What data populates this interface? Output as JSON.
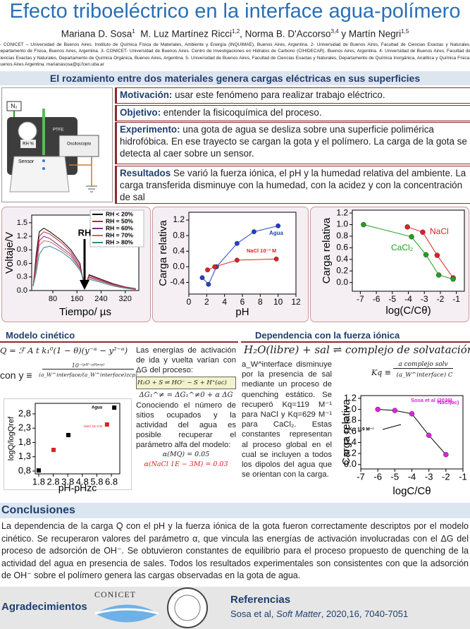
{
  "header": {
    "title": "Efecto triboeléctrico en la interface agua-polímero",
    "authors": [
      {
        "name": "Mariana D. Sosa",
        "sup": "1"
      },
      {
        "name": "M. Luz Martínez Ricci",
        "sup": "1,2"
      },
      {
        "name": ", Norma B. D'Accorso",
        "sup": "3,4"
      },
      {
        "name": " y Martín Negri",
        "sup": "1,5"
      }
    ],
    "affiliations": "1- CONICET – Universidad de Buenos Aires. Instituto de Química Física de Materiales, Ambiente y Energía (INQUIMAE), Buenos Aires, Argentina. 2- Universidad de Buenos Aires, Facultad de Ciencias Exactas y Naturales, Departamento de Física, Buenos Aires, Argentina. 3- CONICET- Universidad de Buenos Aires. Centro de Investigaciones en Hidratos de Carbono (CIHIDECAR). Buenos Aires, Argentina. 4- Universidad de Buenos Aires, Facultad de Ciencias Exactas y Naturales, Departamento de Química Orgánica, Buenos Aires, Argentina. 5- Universidad de Buenos Aires, Facultad de Ciencias Exactas y Naturales, Departamento de Química Inorgánica, Analítica y Química Física, Buenos Aires Argentina. marianasosa@qi.fcen.uba.ar"
  },
  "banner": "El rozamiento entre dos materiales genera cargas eléctricas en sus superficies",
  "diagram": {
    "labels": [
      "N₂",
      "RH %",
      "PTFE",
      "Osciloscopio",
      "Sensor"
    ]
  },
  "intro": [
    {
      "label": "Motivación:",
      "text": " usar este fenómeno para realizar trabajo eléctrico."
    },
    {
      "label": "Objetivo:",
      "text": " entender la fisicoquímica del proceso."
    },
    {
      "label": "Experimento:",
      "text": " una gota de agua se desliza sobre una superficie polimérica hidrofóbica. En ese trayecto se cargan la gota y el polímero. La carga de la gota se detecta al caer sobre un sensor."
    },
    {
      "label": "Resultados",
      "text": " Se varió la fuerza iónica, el pH y la humedad relativa del ambiente. La carga transferida disminuye con la humedad, con la acidez y con la concentración de sal"
    }
  ],
  "chart_data": [
    {
      "type": "line",
      "xlabel": "Tiempo/ µs",
      "ylabel": "Voltaje/V",
      "x": [
        15,
        25,
        35,
        50,
        70,
        90,
        110,
        140,
        170,
        185,
        200,
        240,
        280,
        320,
        355
      ],
      "series": [
        {
          "name": "RH < 20%",
          "color": "#000000",
          "values": [
            0.1,
            0.8,
            1.3,
            1.38,
            1.3,
            1.2,
            1.1,
            0.9,
            0.6,
            0.05,
            0.35,
            0.25,
            0.15,
            0.08,
            0.04
          ]
        },
        {
          "name": "RH = 50%",
          "color": "#d42020",
          "values": [
            0.1,
            0.7,
            1.2,
            1.3,
            1.25,
            1.15,
            1.05,
            0.85,
            0.55,
            0.1,
            0.33,
            0.24,
            0.14,
            0.08,
            0.04
          ]
        },
        {
          "name": "RH = 60%",
          "color": "#7b2d8b",
          "values": [
            0.1,
            0.6,
            1.1,
            1.2,
            1.15,
            1.05,
            0.95,
            0.8,
            0.5,
            0.12,
            0.3,
            0.22,
            0.13,
            0.07,
            0.03
          ]
        },
        {
          "name": "RH = 70%",
          "color": "#c86464",
          "values": [
            0.1,
            0.5,
            1.0,
            1.1,
            1.08,
            1.0,
            0.9,
            0.75,
            0.48,
            0.15,
            0.28,
            0.2,
            0.12,
            0.06,
            0.03
          ]
        },
        {
          "name": "RH > 80%",
          "color": "#2e8b8b",
          "values": [
            0.1,
            0.4,
            0.8,
            0.95,
            0.98,
            0.92,
            0.85,
            0.7,
            0.45,
            0.2,
            0.25,
            0.18,
            0.1,
            0.05,
            0.02
          ]
        }
      ],
      "xlim": [
        10,
        365
      ],
      "ylim": [
        0,
        1.67
      ],
      "xticks": [
        80,
        160,
        240,
        320
      ],
      "yticks": [
        {
          "value": 0,
          "label": "0.0"
        },
        0.3,
        0.6,
        0.9,
        1.2,
        1.5
      ],
      "annotations": [
        {
          "text": "RH",
          "color": "#000000"
        }
      ],
      "legend": "upper right"
    },
    {
      "type": "scatter",
      "connected": true,
      "marker": "circle",
      "xlabel": "pH",
      "ylabel": "Carga relativa",
      "series": [
        {
          "name": "Agua",
          "color": "#1f3fd0",
          "x": [
            1.5,
            2.2,
            3.1,
            5.4,
            7.3,
            10
          ],
          "values": [
            -0.28,
            -0.45,
            0.0,
            0.6,
            0.9,
            1.05
          ]
        },
        {
          "name": "NaCl 10⁻³ M",
          "color": "#e02020",
          "x": [
            2.1,
            2.9,
            5.4,
            9.8
          ],
          "values": [
            -0.08,
            0.0,
            0.17,
            0.2
          ]
        }
      ],
      "xlim": [
        0,
        12
      ],
      "ylim": [
        -0.7,
        1.4
      ],
      "xticks": [
        0,
        2,
        4,
        6,
        8,
        10,
        12
      ],
      "yticks": [
        -0.4,
        {
          "value": 0,
          "label": "0.0"
        },
        0.4,
        0.8,
        1.2
      ]
    },
    {
      "type": "scatter",
      "connected": true,
      "marker": "circle",
      "xlabel": "log(C/Cθ)",
      "ylabel": "Carga relativa",
      "series": [
        {
          "name": "NaCl",
          "color": "#e02020",
          "x": [
            -4.06,
            -3.1,
            -2.2,
            -1.2
          ],
          "values": [
            0.96,
            0.87,
            0.47,
            0.08
          ]
        },
        {
          "name": "CaCl₂",
          "color": "#20a020",
          "x": [
            -6.8,
            -3.8,
            -2.9,
            -2.1,
            -1.2
          ],
          "values": [
            1.0,
            0.79,
            0.48,
            0.13,
            0.06
          ]
        }
      ],
      "xlim": [
        -7.5,
        -0.5
      ],
      "ylim": [
        -0.15,
        1.25
      ],
      "xticks": [
        -7,
        -6,
        -5,
        -4,
        -3,
        -2,
        -1
      ],
      "yticks": [
        {
          "value": 0,
          "label": "0.0"
        },
        0.2,
        0.4,
        0.6,
        0.8,
        {
          "value": 1,
          "label": "1.0"
        },
        1.2
      ]
    },
    {
      "type": "scatter",
      "connected": false,
      "marker": "square",
      "xlabel": "pH-pHzc",
      "ylabel": "logQ/logQref",
      "series": [
        {
          "name": "Agua",
          "color": "#000000",
          "x": [
            1.8,
            3.84,
            7.0
          ],
          "values": [
            0.82,
            2.06,
            3.02
          ]
        },
        {
          "name": "NaCl 1E-3 M",
          "color": "#e02020",
          "x": [
            2.82,
            6.5
          ],
          "values": [
            1.54,
            2.43
          ]
        }
      ],
      "xlim": [
        1.56,
        7.38
      ],
      "ylim": [
        0.7,
        3.17
      ],
      "xticks": [
        1.8,
        2.8,
        3.8,
        4.8,
        5.8,
        6.8
      ],
      "yticks": [
        {
          "value": 0.8,
          "label": "0,8"
        },
        {
          "value": 1.3,
          "label": "1,3"
        },
        {
          "value": 1.8,
          "label": "1,8"
        },
        {
          "value": 2.3,
          "label": "2,3"
        },
        {
          "value": 2.8,
          "label": "2,8"
        }
      ]
    },
    {
      "type": "scatter",
      "connected": true,
      "marker": "circle",
      "xlabel": "logC/Cθ",
      "ylabel": "Carga relativa",
      "series": [
        {
          "color": "#e020e0",
          "x": [
            -6,
            -5,
            -4,
            -3,
            -2
          ],
          "values": [
            1.0,
            0.98,
            0.92,
            0.53,
            0.18
          ]
        }
      ],
      "xlim": [
        -7,
        -1
      ],
      "ylim": [
        -0.08,
        1.25
      ],
      "xticks": [
        -7,
        -6,
        -5,
        -4,
        -3,
        -2,
        -1
      ],
      "yticks": [
        {
          "value": 0,
          "label": "0.0"
        },
        0.2,
        0.4,
        0.6,
        0.8,
        {
          "value": 1,
          "label": "1.0"
        },
        1.2
      ],
      "annotations": [
        {
          "text": "Sosa et al (2020)",
          "color": "#e020e0"
        },
        {
          "text": "NaCl(ac)",
          "color": "#e020e0"
        },
        {
          "text": "K = 119 M⁻¹",
          "color": "#000000"
        }
      ]
    }
  ],
  "model": {
    "heading": "Modelo cinético",
    "equation": "Q = ℱ A t k₁⁰(1 − θ)(y⁻ᵅ − y²⁻ᵅ)",
    "definition_prefix": "con y ≡",
    "definition_numerator": "10⁻⁽ᵖᴴ⁻ᵖᴴᶻᶜᵖ⁾",
    "definition_denominator": "(a_W^interface/(a_W^interface)zcp)",
    "text1": "Las energías de activación de ida y vuelta varían con ΔG del proceso:",
    "reaction": "H₂O + S ⇌ HO⁻ − S + H⁺(ac)",
    "dg_equation": "ΔG₁^≠ = ΔG₁^≠0 + α ΔG",
    "text2": "Conociendo el número de sitios ocupados y la actividad del agua es posible recuperar el parámetro alfa del modelo:",
    "alpha_mq": "α(MQ) = 0.05",
    "alpha_nacl": "α(NaCl 1E − 3M) = 0.03"
  },
  "ionic": {
    "heading": "Dependencia con la fuerza iónica",
    "equation": "H₂O(libre) + sal ⇌ complejo de solvatación",
    "paragraph": "a_W^interface disminuye por la presencia de sal mediante un proceso de quenching estático. Se recuperó Kq=119 M⁻¹ para NaCl y Kq=629 M⁻¹ para CaCl₂. Estas constantes representan al proceso global en el cual se incluyen a todos los dipolos del agua que se orientan con la carga.",
    "kq_lhs": "Kq ≡",
    "kq_numerator": "a complejo solv",
    "kq_denominator": "(a_W^interface) C"
  },
  "conclusions": {
    "heading": "Conclusiones",
    "text": "La dependencia de la carga Q con el pH y la fuerza iónica de la gota fueron correctamente descriptos por el modelo cinético. Se recuperaron valores del parámetro α, que vincula las energías de activación involucradas con el ΔG del proceso de adsorción de OH⁻. Se obtuvieron constantes de equilibrio para el proceso propuesto de quenching de la actividad del agua en presencia de sales. Todos los resultados experimentales son consistentes con que la adsorción de OH⁻ sobre el polímero genera las cargas observadas en la gota de agua."
  },
  "footer": {
    "acknowledgments": "Agradecimientos",
    "logo": "CONICET",
    "references_heading": "Referencias",
    "reference_authors": "Sosa et al, ",
    "reference_journal": "Soft Matter",
    "reference_details": ", 2020,16, 7040-7051"
  }
}
